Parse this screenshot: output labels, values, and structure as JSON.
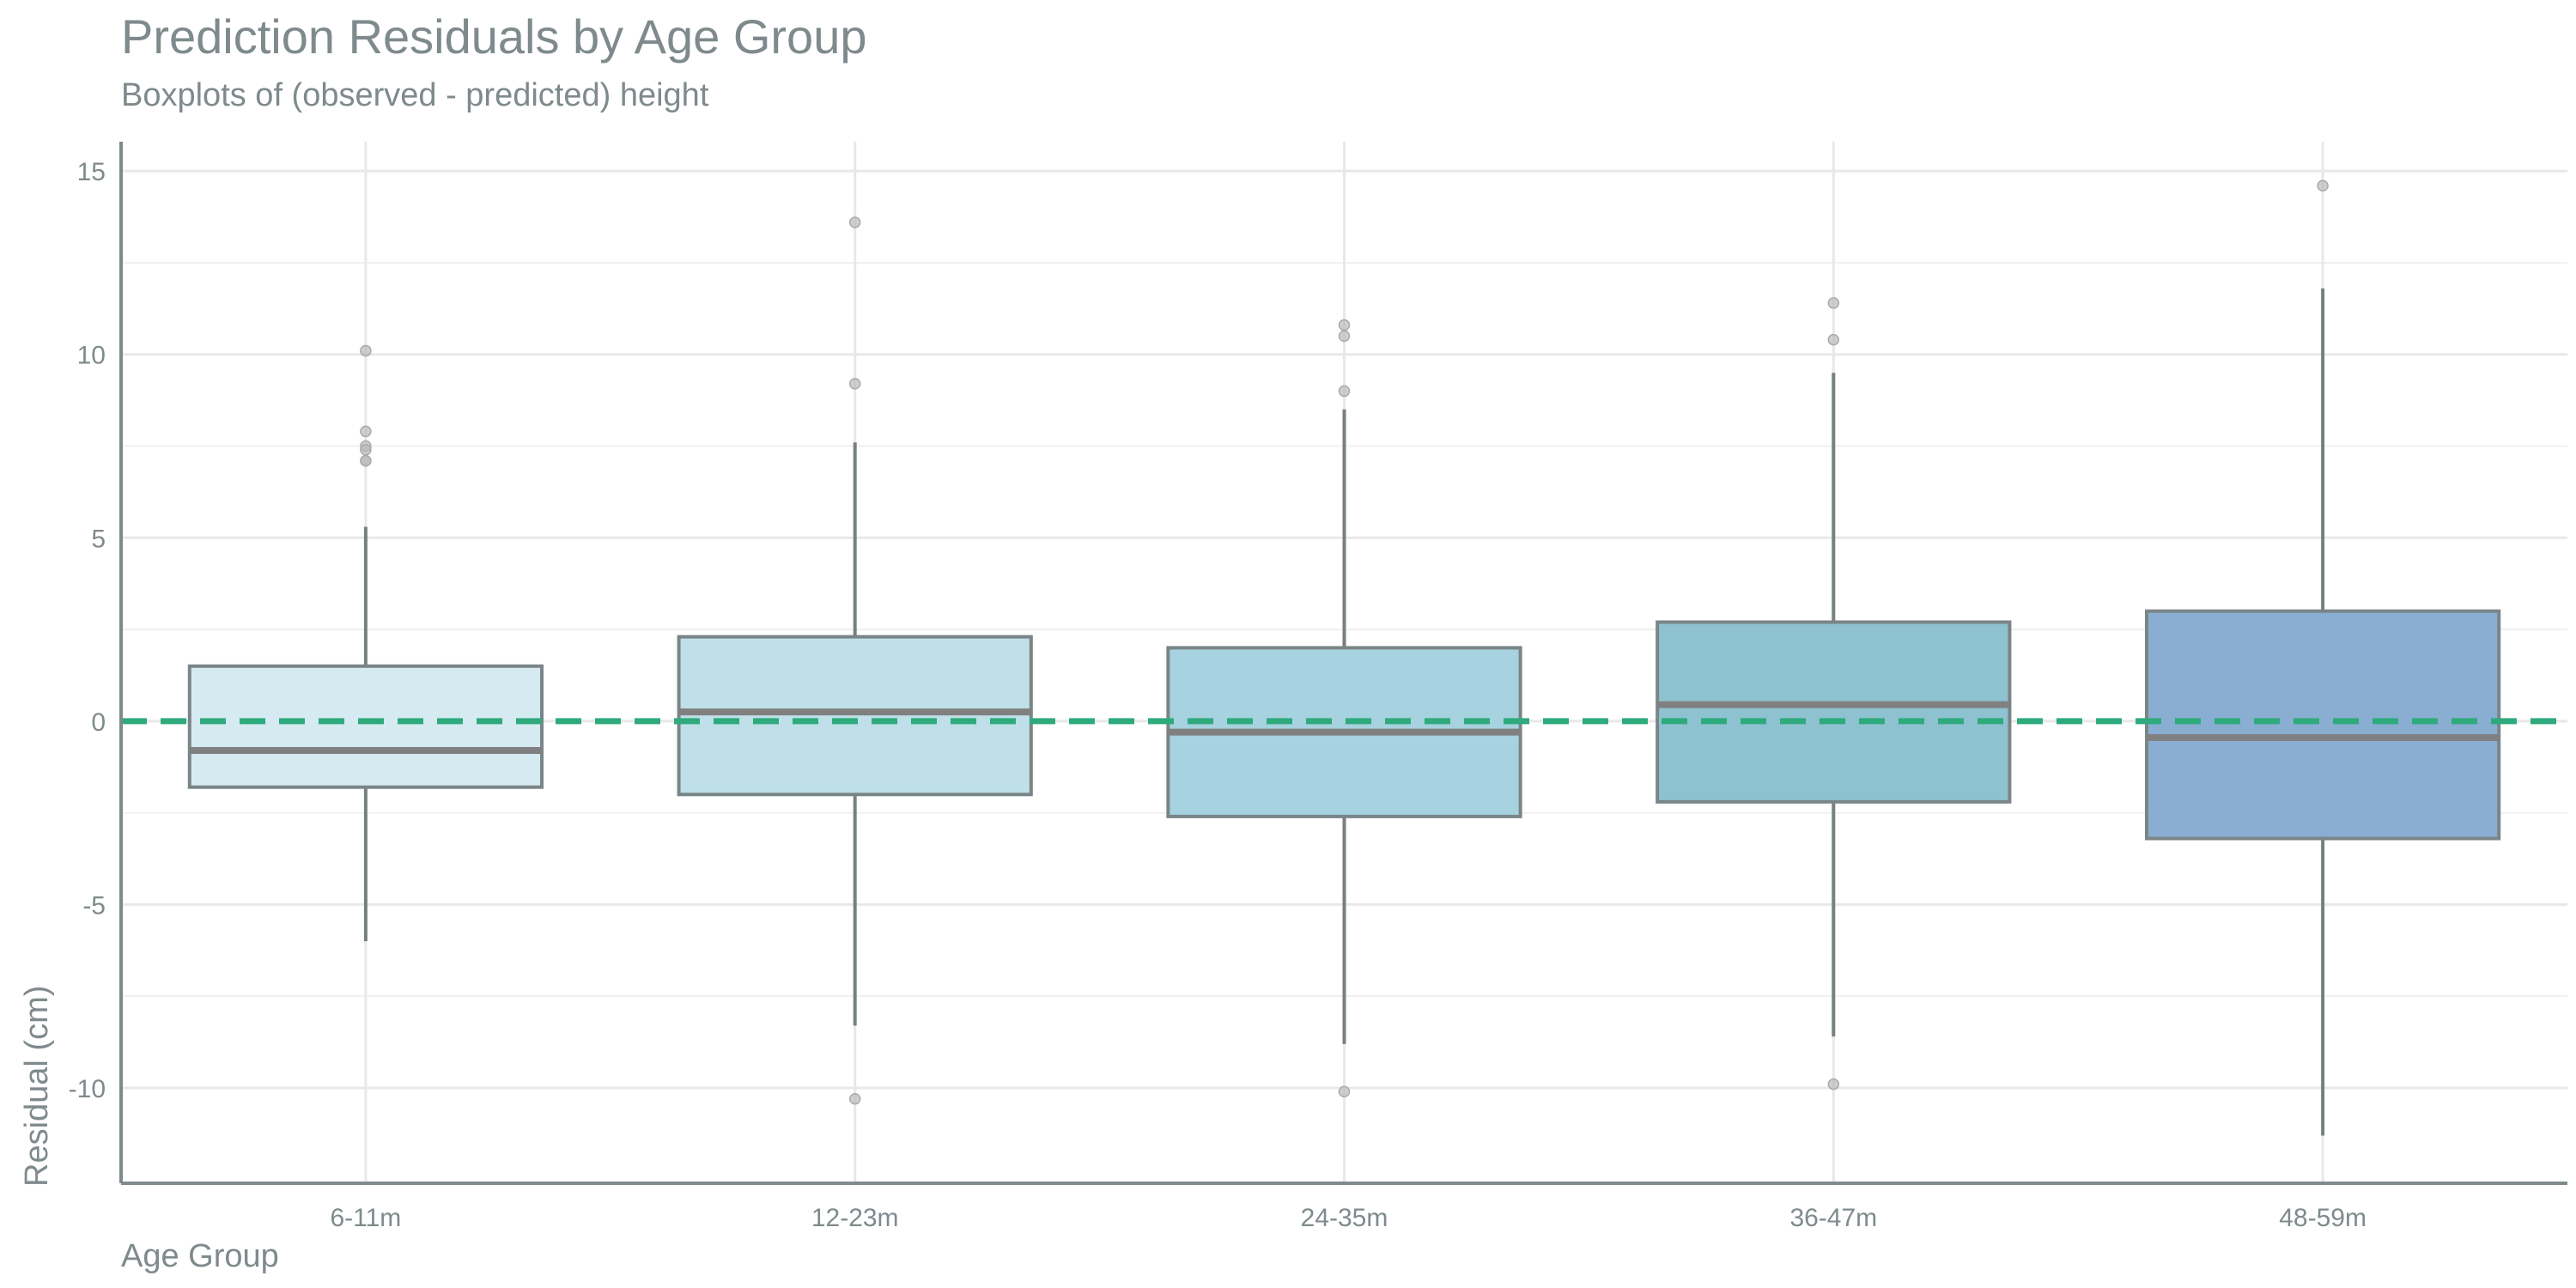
{
  "chart_data": {
    "type": "box",
    "title": "Prediction Residuals by Age Group",
    "subtitle": "Boxplots of (observed - predicted) height",
    "xlabel": "Age Group",
    "ylabel": "Residual (cm)",
    "categories": [
      "6-11m",
      "12-23m",
      "24-35m",
      "36-47m",
      "48-59m"
    ],
    "ylim": [
      -12.6,
      15.8
    ],
    "yticks": [
      -10,
      -5,
      0,
      5,
      10,
      15
    ],
    "grid": true,
    "reference_line": {
      "y": 0,
      "style": "dashed",
      "color": "#2eaa7c"
    },
    "boxes": [
      {
        "category": "6-11m",
        "whisker_low": -6.0,
        "q1": -1.8,
        "median": -0.8,
        "q3": 1.5,
        "whisker_high": 5.3,
        "outliers": [
          10.1,
          7.9,
          7.5,
          7.4,
          7.1,
          7.1
        ],
        "fill": "#d6eaf1"
      },
      {
        "category": "12-23m",
        "whisker_low": -8.3,
        "q1": -2.0,
        "median": 0.25,
        "q3": 2.3,
        "whisker_high": 7.6,
        "outliers": [
          13.6,
          9.2,
          -10.3
        ],
        "fill": "#bfe0e8"
      },
      {
        "category": "24-35m",
        "whisker_low": -8.8,
        "q1": -2.6,
        "median": -0.3,
        "q3": 2.0,
        "whisker_high": 8.5,
        "outliers": [
          10.8,
          10.5,
          9.0,
          -10.1
        ],
        "fill": "#a7d2df"
      },
      {
        "category": "36-47m",
        "whisker_low": -8.6,
        "q1": -2.2,
        "median": 0.45,
        "q3": 2.7,
        "whisker_high": 9.5,
        "outliers": [
          11.4,
          10.4,
          -9.9
        ],
        "fill": "#8ec2d0"
      },
      {
        "category": "48-59m",
        "whisker_low": -11.3,
        "q1": -3.2,
        "median": -0.45,
        "q3": 3.0,
        "whisker_high": 11.8,
        "outliers": [
          14.6
        ],
        "fill": "#8aaed2"
      }
    ],
    "colors": {
      "box_stroke": "#7a8587",
      "median": "#808080",
      "whisker": "#76807f",
      "outlier": "#bbbbbb",
      "grid": "#e8e8e8",
      "axis": "#7f8a8c"
    }
  }
}
